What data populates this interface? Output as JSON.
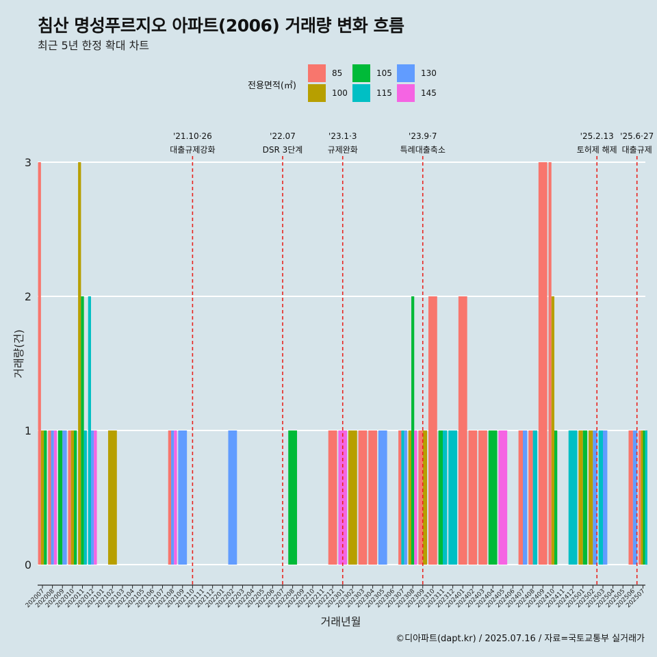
{
  "title": "침산 명성푸르지오 아파트(2006) 거래량 변화 흐름",
  "subtitle": "최근 5년 한정 확대 차트",
  "caption": "©디아파트(dapt.kr) / 2025.07.16 / 자료=국토교통부 실거래가",
  "colors": {
    "background": "#d6e4ea",
    "grid": "#ffffff",
    "event_line": "#e8231e"
  },
  "chart_data": {
    "type": "bar",
    "title": "침산 명성푸르지오 아파트(2006) 거래량 변화 흐름",
    "xlabel": "거래년월",
    "ylabel": "거래량(건)",
    "ylim": [
      0,
      3
    ],
    "y_ticks": [
      "0",
      "1",
      "2",
      "3"
    ],
    "legend_title": "전용면적(㎡)",
    "legend_position": "top",
    "categories": [
      "202007",
      "202008",
      "202009",
      "202010",
      "202011",
      "202012",
      "202101",
      "202102",
      "202103",
      "202104",
      "202105",
      "202106",
      "202107",
      "202108",
      "202109",
      "202110",
      "202111",
      "202112",
      "202201",
      "202202",
      "202203",
      "202204",
      "202205",
      "202206",
      "202207",
      "202208",
      "202209",
      "202210",
      "202211",
      "202212",
      "202301",
      "202302",
      "202303",
      "202304",
      "202305",
      "202306",
      "202307",
      "202308",
      "202309",
      "202310",
      "202311",
      "202312",
      "202401",
      "202402",
      "202403",
      "202404",
      "202405",
      "202406",
      "202407",
      "202408",
      "202409",
      "202410",
      "202411",
      "202412",
      "202501",
      "202502",
      "202503",
      "202504",
      "202505",
      "202506",
      "202507"
    ],
    "series": [
      {
        "name": "85",
        "color": "#f8766d",
        "values": [
          3,
          1,
          0,
          1,
          0,
          0,
          0,
          0,
          0,
          0,
          0,
          0,
          0,
          1,
          0,
          0,
          0,
          0,
          0,
          0,
          0,
          0,
          0,
          0,
          0,
          0,
          0,
          0,
          0,
          1,
          0,
          0,
          1,
          1,
          0,
          0,
          1,
          0,
          1,
          2,
          0,
          0,
          2,
          1,
          1,
          0,
          0,
          0,
          1,
          1,
          3,
          3,
          0,
          0,
          0,
          0,
          0,
          0,
          0,
          1,
          1
        ]
      },
      {
        "name": "100",
        "color": "#b79f00",
        "values": [
          1,
          0,
          0,
          1,
          3,
          0,
          0,
          1,
          0,
          0,
          0,
          0,
          0,
          0,
          0,
          0,
          0,
          0,
          0,
          0,
          0,
          0,
          0,
          0,
          0,
          0,
          0,
          0,
          0,
          0,
          0,
          1,
          0,
          0,
          0,
          0,
          0,
          1,
          1,
          0,
          0,
          0,
          0,
          0,
          0,
          0,
          0,
          0,
          0,
          0,
          0,
          2,
          0,
          0,
          1,
          1,
          0,
          0,
          0,
          0,
          1
        ]
      },
      {
        "name": "105",
        "color": "#00ba38",
        "values": [
          1,
          0,
          1,
          1,
          2,
          0,
          0,
          0,
          0,
          0,
          0,
          0,
          0,
          0,
          0,
          0,
          0,
          0,
          0,
          0,
          0,
          0,
          0,
          0,
          0,
          1,
          0,
          0,
          0,
          0,
          0,
          0,
          0,
          0,
          0,
          0,
          0,
          2,
          0,
          0,
          1,
          0,
          0,
          0,
          0,
          1,
          0,
          0,
          0,
          0,
          0,
          1,
          0,
          0,
          1,
          0,
          0,
          0,
          0,
          0,
          1
        ]
      },
      {
        "name": "115",
        "color": "#00bfc4",
        "values": [
          0,
          0,
          0,
          0,
          1,
          2,
          0,
          0,
          0,
          0,
          0,
          0,
          0,
          0,
          0,
          0,
          0,
          0,
          0,
          0,
          0,
          0,
          0,
          0,
          0,
          0,
          0,
          0,
          0,
          0,
          0,
          0,
          0,
          0,
          0,
          0,
          1,
          0,
          0,
          0,
          1,
          1,
          0,
          0,
          0,
          0,
          0,
          0,
          0,
          1,
          0,
          0,
          0,
          1,
          0,
          0,
          1,
          0,
          0,
          0,
          1
        ]
      },
      {
        "name": "130",
        "color": "#619cff",
        "values": [
          0,
          1,
          1,
          0,
          0,
          1,
          0,
          0,
          0,
          0,
          0,
          0,
          0,
          1,
          1,
          0,
          0,
          0,
          0,
          1,
          0,
          0,
          0,
          0,
          0,
          0,
          0,
          0,
          0,
          0,
          0,
          0,
          0,
          0,
          1,
          0,
          1,
          0,
          0,
          0,
          0,
          0,
          0,
          0,
          0,
          0,
          0,
          0,
          1,
          0,
          0,
          0,
          0,
          0,
          0,
          1,
          1,
          0,
          0,
          1,
          0
        ]
      },
      {
        "name": "145",
        "color": "#f564e3",
        "values": [
          0,
          1,
          0,
          0,
          0,
          1,
          0,
          0,
          0,
          0,
          0,
          0,
          0,
          1,
          0,
          0,
          0,
          0,
          0,
          0,
          0,
          0,
          0,
          0,
          0,
          0,
          0,
          0,
          0,
          0,
          1,
          0,
          0,
          0,
          0,
          0,
          0,
          1,
          0,
          0,
          0,
          0,
          0,
          0,
          0,
          0,
          1,
          0,
          0,
          0,
          0,
          0,
          0,
          0,
          0,
          0,
          0,
          0,
          0,
          0,
          0
        ]
      }
    ],
    "events": [
      {
        "index": 15.0,
        "date": "'21.10·26",
        "label": "대출규제강화"
      },
      {
        "index": 24.0,
        "date": "'22.07",
        "label": "DSR 3단계"
      },
      {
        "index": 30.0,
        "date": "'23.1·3",
        "label": "규제완화"
      },
      {
        "index": 38.0,
        "date": "'23.9·7",
        "label": "특례대출축소"
      },
      {
        "index": 55.4,
        "date": "'25.2.13",
        "label": "토허제 해제"
      },
      {
        "index": 59.4,
        "date": "'25.6·27",
        "label": "대출규제"
      }
    ]
  }
}
